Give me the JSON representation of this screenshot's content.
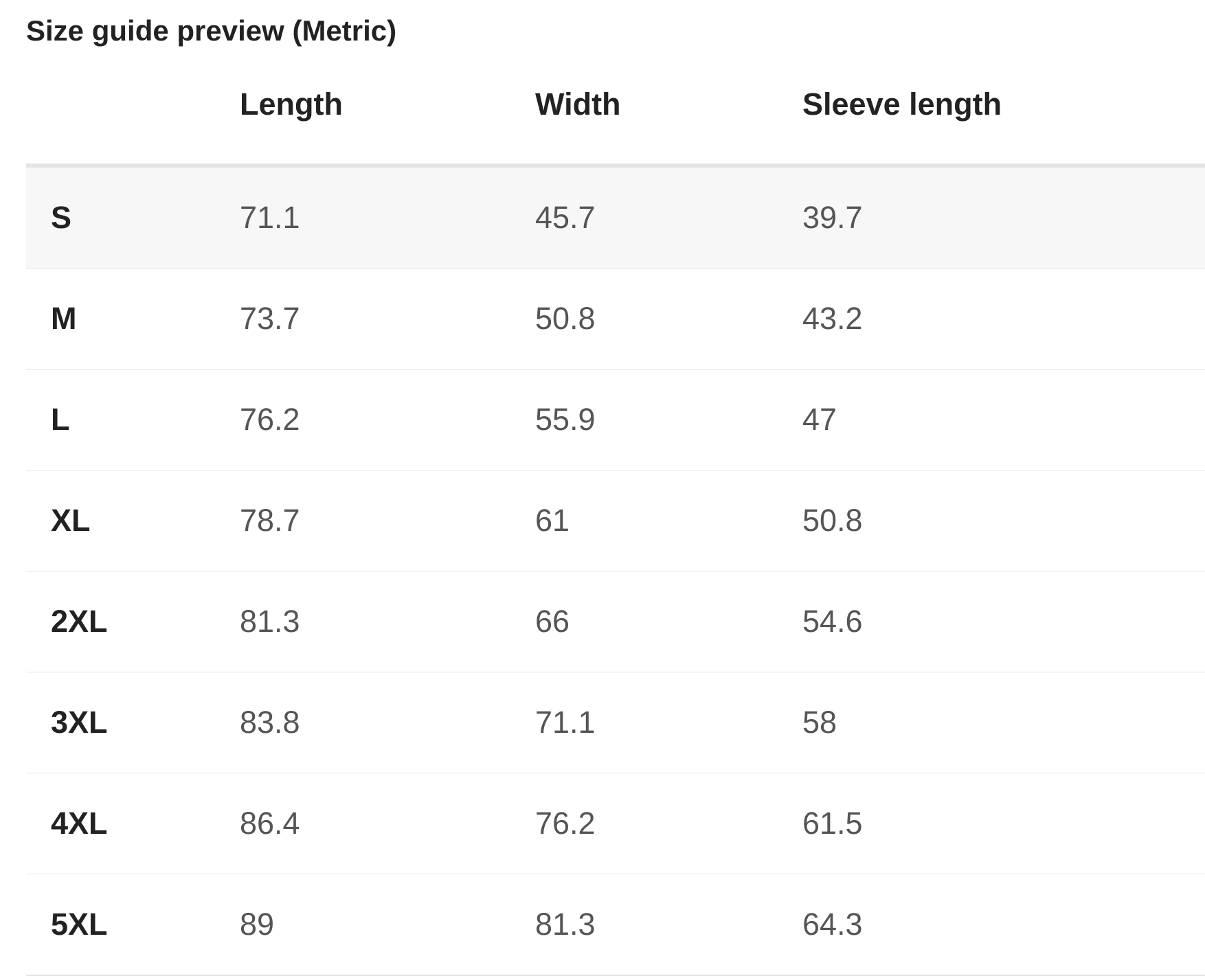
{
  "title": "Size guide preview (Metric)",
  "table": {
    "columns": [
      "Length",
      "Width",
      "Sleeve length"
    ],
    "rows": [
      [
        "S",
        "71.1",
        "45.7",
        "39.7"
      ],
      [
        "M",
        "73.7",
        "50.8",
        "43.2"
      ],
      [
        "L",
        "76.2",
        "55.9",
        "47"
      ],
      [
        "XL",
        "78.7",
        "61",
        "50.8"
      ],
      [
        "2XL",
        "81.3",
        "66",
        "54.6"
      ],
      [
        "3XL",
        "83.8",
        "71.1",
        "58"
      ],
      [
        "4XL",
        "86.4",
        "76.2",
        "61.5"
      ],
      [
        "5XL",
        "89",
        "81.3",
        "64.3"
      ]
    ]
  }
}
